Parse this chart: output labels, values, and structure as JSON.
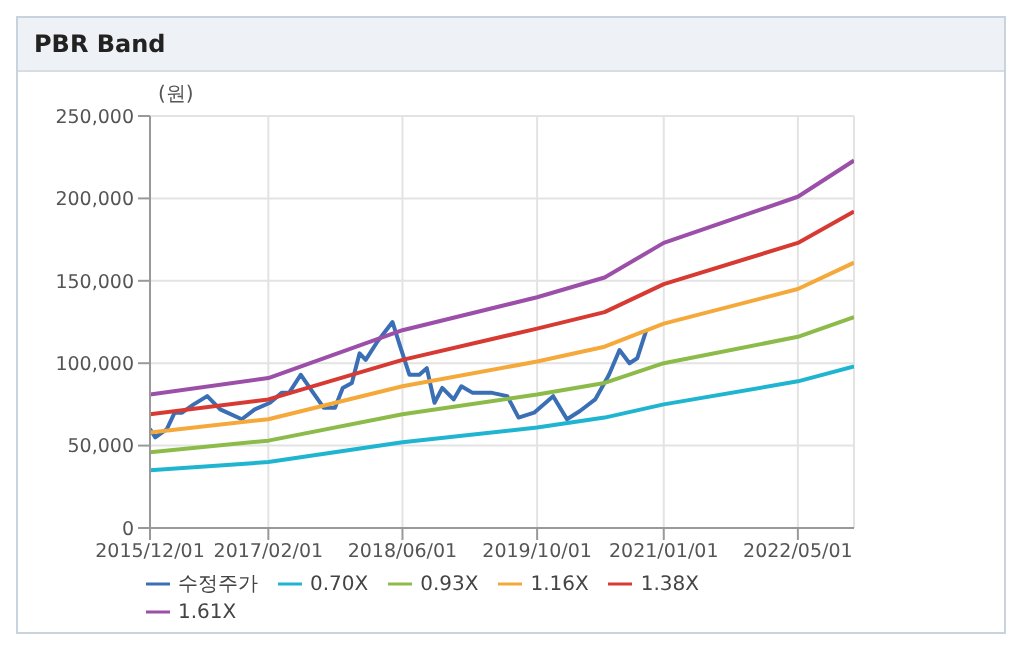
{
  "chart_data": {
    "type": "line",
    "title": "PBR Band",
    "ylabel": "(원)",
    "x": [
      "2015-12-01",
      "2017-02-01",
      "2018-06-01",
      "2019-10-01",
      "2020-06-01",
      "2021-01-01",
      "2022-05-01",
      "2022-11-20"
    ],
    "series": [
      {
        "name": "수정주가",
        "color": "#3a6fb5",
        "x": [
          "2015-12-01",
          "2015-12-20",
          "2016-01-31",
          "2016-02-28",
          "2016-03-26",
          "2016-05-07",
          "2016-06-25",
          "2016-08-11",
          "2016-10-28",
          "2016-12-14",
          "2017-02-07",
          "2017-03-21",
          "2017-04-17",
          "2017-05-29",
          "2017-07-09",
          "2017-08-20",
          "2017-09-30",
          "2017-10-28",
          "2017-11-30",
          "2017-12-28",
          "2018-01-19",
          "2018-03-02",
          "2018-04-26",
          "2018-05-24",
          "2018-06-26",
          "2018-08-01",
          "2018-08-28",
          "2018-09-25",
          "2018-10-23",
          "2018-12-03",
          "2018-12-31",
          "2019-02-10",
          "2019-04-21",
          "2019-06-15",
          "2019-07-26",
          "2019-09-20",
          "2019-11-28",
          "2020-01-17",
          "2020-03-04",
          "2020-04-28",
          "2020-06-17",
          "2020-07-25",
          "2020-08-30",
          "2020-09-27",
          "2020-10-30"
        ],
        "values": [
          60000,
          55000,
          60000,
          70000,
          70000,
          75000,
          80000,
          72000,
          66000,
          72000,
          76000,
          82000,
          82000,
          93000,
          83000,
          73000,
          73000,
          85000,
          88000,
          106000,
          102000,
          113000,
          125000,
          110000,
          93000,
          93000,
          97000,
          76000,
          85000,
          78000,
          86000,
          82000,
          82000,
          80000,
          67000,
          70000,
          80000,
          66000,
          71000,
          78000,
          93000,
          108000,
          100000,
          103000,
          120000
        ]
      },
      {
        "name": "0.70X",
        "color": "#1fb5d0",
        "values": [
          35000,
          40000,
          52000,
          61000,
          67000,
          75000,
          89000,
          98000
        ]
      },
      {
        "name": "0.93X",
        "color": "#8cbb4a",
        "values": [
          46000,
          53000,
          69000,
          81000,
          88000,
          100000,
          116000,
          128000
        ]
      },
      {
        "name": "1.16X",
        "color": "#f5a93b",
        "values": [
          58000,
          66000,
          86000,
          101000,
          110000,
          124000,
          145000,
          161000
        ]
      },
      {
        "name": "1.38X",
        "color": "#d63a32",
        "values": [
          69000,
          78000,
          102000,
          121000,
          131000,
          148000,
          173000,
          192000
        ]
      },
      {
        "name": "1.61X",
        "color": "#9b4fa8",
        "values": [
          81000,
          91000,
          120000,
          140000,
          152000,
          173000,
          201000,
          223000
        ]
      }
    ],
    "xlim": [
      "2015-12-01",
      "2022-11-20"
    ],
    "xticks": [
      {
        "value": "2015-12-01",
        "label": "2015/12/01"
      },
      {
        "value": "2017-02-01",
        "label": "2017/02/01"
      },
      {
        "value": "2018-06-01",
        "label": "2018/06/01"
      },
      {
        "value": "2019-10-01",
        "label": "2019/10/01"
      },
      {
        "value": "2021-01-01",
        "label": "2021/01/01"
      },
      {
        "value": "2022-05-01",
        "label": "2022/05/01"
      }
    ],
    "ylim": [
      0,
      250000
    ],
    "yticks": [
      0,
      {
        "value": 50000,
        "label": "50,000"
      },
      {
        "value": 100000,
        "label": "100,000"
      },
      {
        "value": 150000,
        "label": "150,000"
      },
      {
        "value": 200000,
        "label": "200,000"
      },
      {
        "value": 250000,
        "label": "250,000"
      }
    ],
    "grid": true,
    "legend": "bottom",
    "marker": "none",
    "line_style": "solid"
  }
}
